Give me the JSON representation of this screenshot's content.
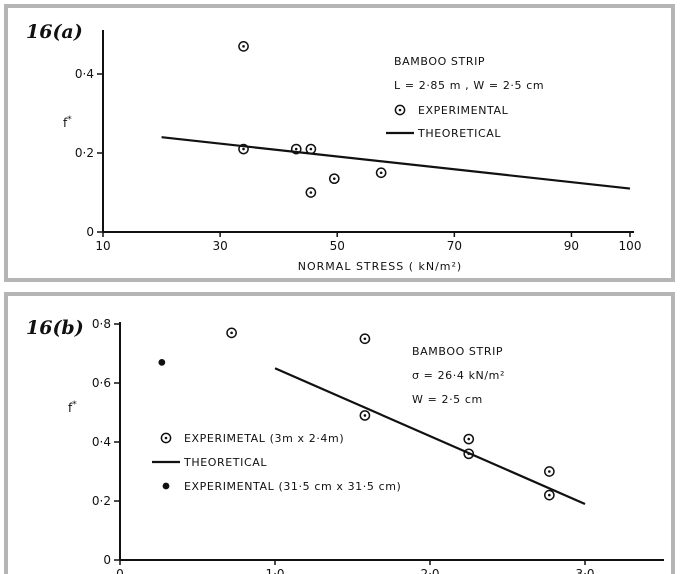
{
  "panels": {
    "a": {
      "tag": "16(a)"
    },
    "b": {
      "tag": "16(b)"
    }
  },
  "chart_data": [
    {
      "type": "scatter",
      "xlabel": "NORMAL STRESS ( kN/m²)",
      "ylabel": "f*",
      "xlim": [
        10,
        100
      ],
      "ylim": [
        0,
        0.5
      ],
      "x_ticks": [
        "10",
        "30",
        "50",
        "70",
        "90",
        "100"
      ],
      "y_ticks": [
        "0",
        "0·2",
        "0·4"
      ],
      "legend_placement": "top-right",
      "legend_lines": [
        "BAMBOO STRIP",
        "L = 2·85 m , W = 2·5 cm"
      ],
      "series": [
        {
          "name": "EXPERIMENTAL",
          "marker": "circle-dot",
          "points": [
            [
              34,
              0.47
            ],
            [
              34,
              0.21
            ],
            [
              43,
              0.21
            ],
            [
              45.5,
              0.21
            ],
            [
              45.5,
              0.1
            ],
            [
              49.5,
              0.135
            ],
            [
              57.5,
              0.15
            ]
          ]
        },
        {
          "name": "THEORETICAL",
          "marker": "line",
          "points": [
            [
              20,
              0.24
            ],
            [
              100,
              0.11
            ]
          ]
        }
      ]
    },
    {
      "type": "scatter",
      "xlabel": "",
      "ylabel": "f*",
      "xlim": [
        0,
        3.5
      ],
      "ylim": [
        0,
        0.8
      ],
      "x_ticks": [
        "0",
        "1·0",
        "2·0",
        "3·0"
      ],
      "y_ticks": [
        "0",
        "0·2",
        "0·4",
        "0·6",
        "0·8"
      ],
      "legend_placement": "top-right and lower-left",
      "legend_lines": [
        "BAMBOO STRIP",
        "σ = 26·4 kN/m²",
        "W = 2·5 cm"
      ],
      "series": [
        {
          "name": "EXPERIMETAL (3m x 2·4m)",
          "marker": "circle-dot",
          "points": [
            [
              0.72,
              0.77
            ],
            [
              1.58,
              0.75
            ],
            [
              1.58,
              0.49
            ],
            [
              2.25,
              0.41
            ],
            [
              2.25,
              0.36
            ],
            [
              2.77,
              0.3
            ],
            [
              2.77,
              0.22
            ]
          ]
        },
        {
          "name": "THEORETICAL",
          "marker": "line",
          "points": [
            [
              1.0,
              0.65
            ],
            [
              3.0,
              0.19
            ]
          ]
        },
        {
          "name": "EXPERIMENTAL (31·5 cm x 31·5 cm)",
          "marker": "filled-circle",
          "points": [
            [
              0.27,
              0.67
            ]
          ]
        }
      ]
    }
  ]
}
